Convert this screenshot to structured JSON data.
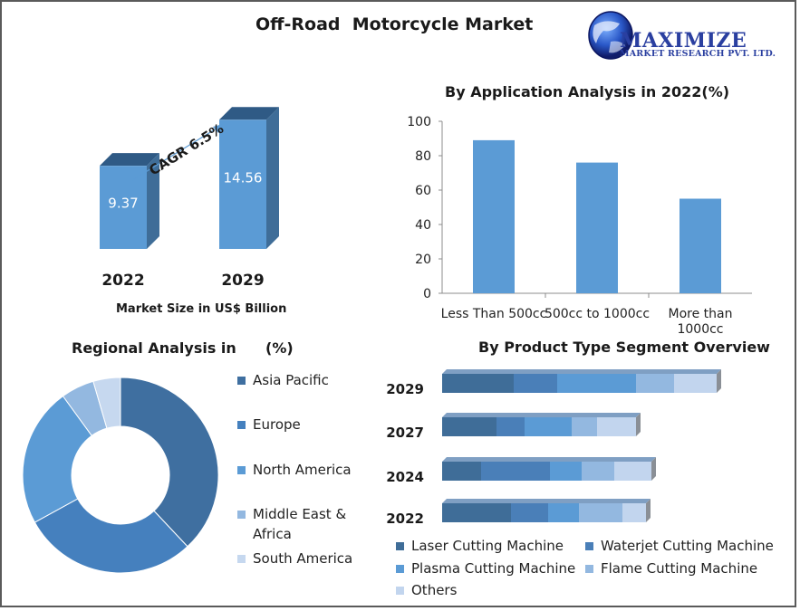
{
  "page": {
    "title": "Off-Road  Motorcycle Market"
  },
  "logo": {
    "name": "MAXIMIZE",
    "tagline": "MARKET RESEARCH PVT. LTD."
  },
  "colors": {
    "bar_front": "#5b9bd5",
    "bar_side": "#3f6d98",
    "bar_top": "#2f5a85",
    "app_bar": "#5b9bd5",
    "axis": "#8c8c8c",
    "asia": "#3f6fa0",
    "europe": "#4580be",
    "na": "#5b9bd5",
    "mea": "#93b8e0",
    "sa": "#c6d8ef",
    "laser": "#3f6d98",
    "waterjet": "#4a7fb8",
    "plasma": "#5b9bd5",
    "flame": "#93b8e0",
    "others": "#c2d5ee"
  },
  "market_size": {
    "cagr": "CAGR 6.5%",
    "caption": "Market Size in US$ Billion",
    "chart_data": {
      "type": "bar",
      "categories": [
        "2022",
        "2029"
      ],
      "values": [
        9.37,
        14.56
      ],
      "labels": [
        "9.37",
        "14.56"
      ]
    }
  },
  "application": {
    "title": "By Application Analysis in 2022(%)",
    "chart_data": {
      "type": "bar",
      "categories": [
        "Less Than 500cc",
        "500cc to 1000cc",
        "More than 1000cc"
      ],
      "category_lines": [
        [
          "Less Than 500cc"
        ],
        [
          "500cc to 1000cc"
        ],
        [
          "More than",
          "1000cc"
        ]
      ],
      "values": [
        89,
        76,
        55
      ],
      "ylim": [
        0,
        100
      ],
      "yticks": [
        "0",
        "20",
        "40",
        "60",
        "80",
        "100"
      ]
    }
  },
  "regional": {
    "title": "Regional Analysis in",
    "unit": "(%)",
    "chart_data": {
      "type": "pie",
      "categories": [
        "Asia Pacific",
        "Europe",
        "North America",
        "Middle East & Africa",
        "South America"
      ],
      "legend_lines": [
        [
          "Asia Pacific"
        ],
        [
          "Europe"
        ],
        [
          "North America"
        ],
        [
          "Middle East &",
          "Africa"
        ],
        [
          "South America"
        ]
      ],
      "values": [
        38,
        29,
        23,
        5.5,
        4.5
      ]
    }
  },
  "product": {
    "title": "By Product Type Segment Overview",
    "chart_data": {
      "type": "bar",
      "stacked": true,
      "orientation": "horizontal",
      "categories": [
        "2029",
        "2027",
        "2024",
        "2022"
      ],
      "series": [
        {
          "name": "Laser Cutting Machine",
          "values": [
            79,
            60,
            43,
            76
          ]
        },
        {
          "name": "Waterjet Cutting Machine",
          "values": [
            48,
            31,
            76,
            41
          ]
        },
        {
          "name": "Plasma Cutting Machine",
          "values": [
            87,
            52,
            35,
            34
          ]
        },
        {
          "name": "Flame Cutting Machine",
          "values": [
            42,
            28,
            36,
            48
          ]
        },
        {
          "name": "Others",
          "values": [
            47,
            43,
            41,
            26
          ]
        }
      ]
    }
  }
}
